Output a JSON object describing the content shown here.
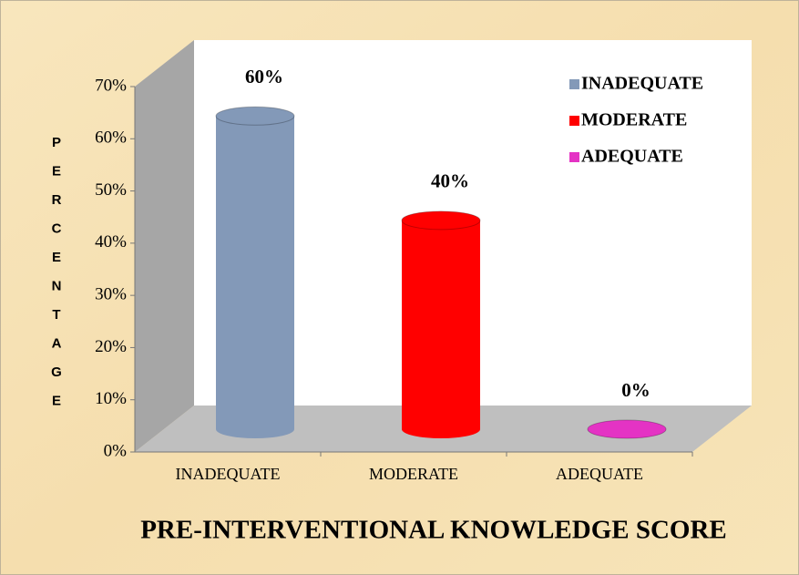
{
  "chart_data": {
    "type": "bar",
    "title": "PRE-INTERVENTIONAL KNOWLEDGE SCORE",
    "y_label": "PERCENTAGE",
    "categories": [
      "INADEQUATE",
      "MODERATE",
      "ADEQUATE"
    ],
    "values": [
      60,
      40,
      0
    ],
    "value_labels": [
      "60%",
      "40%",
      "0%"
    ],
    "colors": [
      "#8399b8",
      "#ff0000",
      "#e433c4"
    ],
    "ylim": [
      0,
      70
    ],
    "yticks": [
      {
        "value": 0,
        "label": "0%"
      },
      {
        "value": 10,
        "label": "10%"
      },
      {
        "value": 20,
        "label": "20%"
      },
      {
        "value": 30,
        "label": "30%"
      },
      {
        "value": 40,
        "label": "40%"
      },
      {
        "value": 50,
        "label": "50%"
      },
      {
        "value": 60,
        "label": "60%"
      },
      {
        "value": 70,
        "label": "70%"
      }
    ],
    "legend": "top-right"
  }
}
